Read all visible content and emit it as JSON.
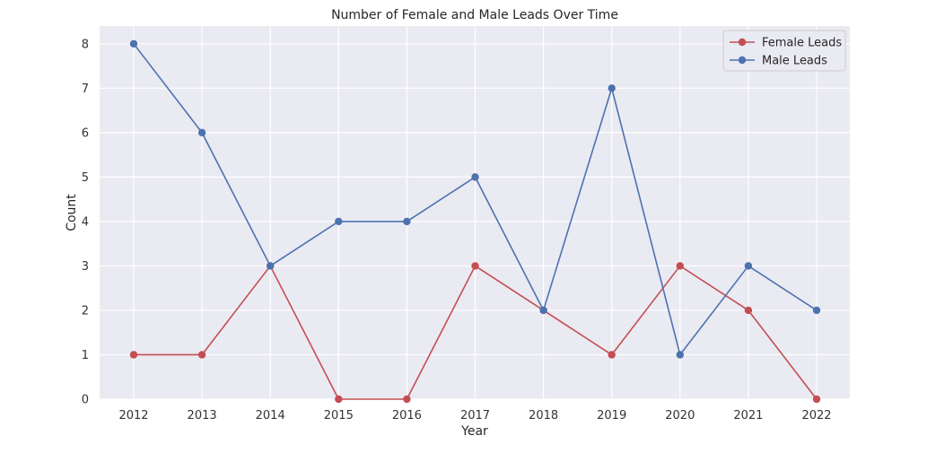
{
  "chart_data": {
    "type": "line",
    "title": "Number of Female and Male Leads Over Time",
    "xlabel": "Year",
    "ylabel": "Count",
    "x": [
      "2012",
      "2013",
      "2014",
      "2015",
      "2016",
      "2017",
      "2018",
      "2019",
      "2020",
      "2021",
      "2022"
    ],
    "ylim": [
      0,
      8.4
    ],
    "yticks": [
      "0",
      "1",
      "2",
      "3",
      "4",
      "5",
      "6",
      "7",
      "8"
    ],
    "grid": true,
    "legend_position": "top-right",
    "series": [
      {
        "name": "Female Leads",
        "color": "#c44e52",
        "marker": "circle",
        "values": [
          1,
          1,
          3,
          0,
          0,
          3,
          2,
          1,
          3,
          2,
          0
        ]
      },
      {
        "name": "Male Leads",
        "color": "#4c72b0",
        "marker": "circle",
        "values": [
          8,
          6,
          3,
          4,
          4,
          5,
          2,
          7,
          1,
          3,
          2
        ]
      }
    ],
    "background_color": "#eaeaf2",
    "grid_color": "#ffffff"
  }
}
